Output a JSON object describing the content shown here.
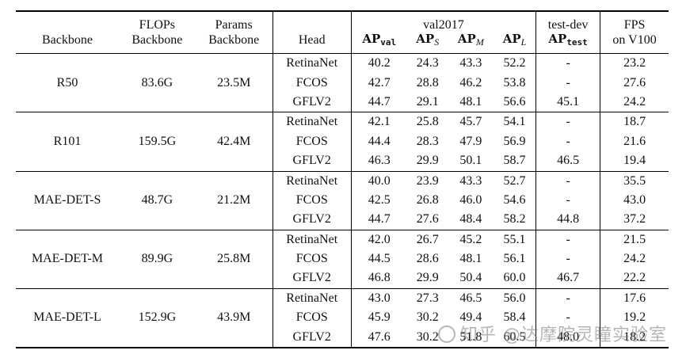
{
  "headers": {
    "backbone": "Backbone",
    "flops_line1": "FLOPs",
    "flops_line2": "Backbone",
    "params_line1": "Params",
    "params_line2": "Backbone",
    "head": "Head",
    "val_group": "val2017",
    "ap_val": "AP",
    "ap_val_sub": "val",
    "ap_s": "AP",
    "ap_s_sub": "S",
    "ap_m": "AP",
    "ap_m_sub": "M",
    "ap_l": "AP",
    "ap_l_sub": "L",
    "test_group": "test-dev",
    "ap_test": "AP",
    "ap_test_sub": "test",
    "fps_line1": "FPS",
    "fps_line2": "on V100"
  },
  "groups": [
    {
      "backbone": "R50",
      "flops": "83.6G",
      "params": "23.5M",
      "rows": [
        {
          "head": "RetinaNet",
          "ap_val": "40.2",
          "ap_s": "24.3",
          "ap_m": "43.3",
          "ap_l": "52.2",
          "ap_test": "-",
          "fps": "23.2"
        },
        {
          "head": "FCOS",
          "ap_val": "42.7",
          "ap_s": "28.8",
          "ap_m": "46.2",
          "ap_l": "53.8",
          "ap_test": "-",
          "fps": "27.6"
        },
        {
          "head": "GFLV2",
          "ap_val": "44.7",
          "ap_s": "29.1",
          "ap_m": "48.1",
          "ap_l": "56.6",
          "ap_test": "45.1",
          "fps": "24.2"
        }
      ]
    },
    {
      "backbone": "R101",
      "flops": "159.5G",
      "params": "42.4M",
      "rows": [
        {
          "head": "RetinaNet",
          "ap_val": "42.1",
          "ap_s": "25.8",
          "ap_m": "45.7",
          "ap_l": "54.1",
          "ap_test": "-",
          "fps": "18.7"
        },
        {
          "head": "FCOS",
          "ap_val": "44.4",
          "ap_s": "28.3",
          "ap_m": "47.9",
          "ap_l": "56.9",
          "ap_test": "-",
          "fps": "21.6"
        },
        {
          "head": "GFLV2",
          "ap_val": "46.3",
          "ap_s": "29.9",
          "ap_m": "50.1",
          "ap_l": "58.7",
          "ap_test": "46.5",
          "fps": "19.4"
        }
      ]
    },
    {
      "backbone": "MAE-DET-S",
      "flops": "48.7G",
      "params": "21.2M",
      "rows": [
        {
          "head": "RetinaNet",
          "ap_val": "40.0",
          "ap_s": "23.9",
          "ap_m": "43.3",
          "ap_l": "52.7",
          "ap_test": "-",
          "fps": "35.5"
        },
        {
          "head": "FCOS",
          "ap_val": "42.5",
          "ap_s": "26.8",
          "ap_m": "46.0",
          "ap_l": "54.6",
          "ap_test": "-",
          "fps": "43.0"
        },
        {
          "head": "GFLV2",
          "ap_val": "44.7",
          "ap_s": "27.6",
          "ap_m": "48.4",
          "ap_l": "58.2",
          "ap_test": "44.8",
          "fps": "37.2"
        }
      ]
    },
    {
      "backbone": "MAE-DET-M",
      "flops": "89.9G",
      "params": "25.8M",
      "rows": [
        {
          "head": "RetinaNet",
          "ap_val": "42.0",
          "ap_s": "26.7",
          "ap_m": "45.2",
          "ap_l": "55.1",
          "ap_test": "-",
          "fps": "21.5"
        },
        {
          "head": "FCOS",
          "ap_val": "44.5",
          "ap_s": "28.6",
          "ap_m": "48.1",
          "ap_l": "56.1",
          "ap_test": "-",
          "fps": "24.2"
        },
        {
          "head": "GFLV2",
          "ap_val": "46.8",
          "ap_s": "29.9",
          "ap_m": "50.4",
          "ap_l": "60.0",
          "ap_test": "46.7",
          "fps": "22.2"
        }
      ]
    },
    {
      "backbone": "MAE-DET-L",
      "flops": "152.9G",
      "params": "43.9M",
      "rows": [
        {
          "head": "RetinaNet",
          "ap_val": "43.0",
          "ap_s": "27.3",
          "ap_m": "46.5",
          "ap_l": "56.0",
          "ap_test": "-",
          "fps": "17.6"
        },
        {
          "head": "FCOS",
          "ap_val": "45.9",
          "ap_s": "30.2",
          "ap_m": "49.4",
          "ap_l": "58.4",
          "ap_test": "-",
          "fps": "19.2"
        },
        {
          "head": "GFLV2",
          "ap_val": "47.6",
          "ap_s": "30.2",
          "ap_m": "51.8",
          "ap_l": "60.5",
          "ap_test": "48.0",
          "fps": "18.2"
        }
      ]
    }
  ],
  "watermark": "知乎 @达摩院灵瞳实验室"
}
